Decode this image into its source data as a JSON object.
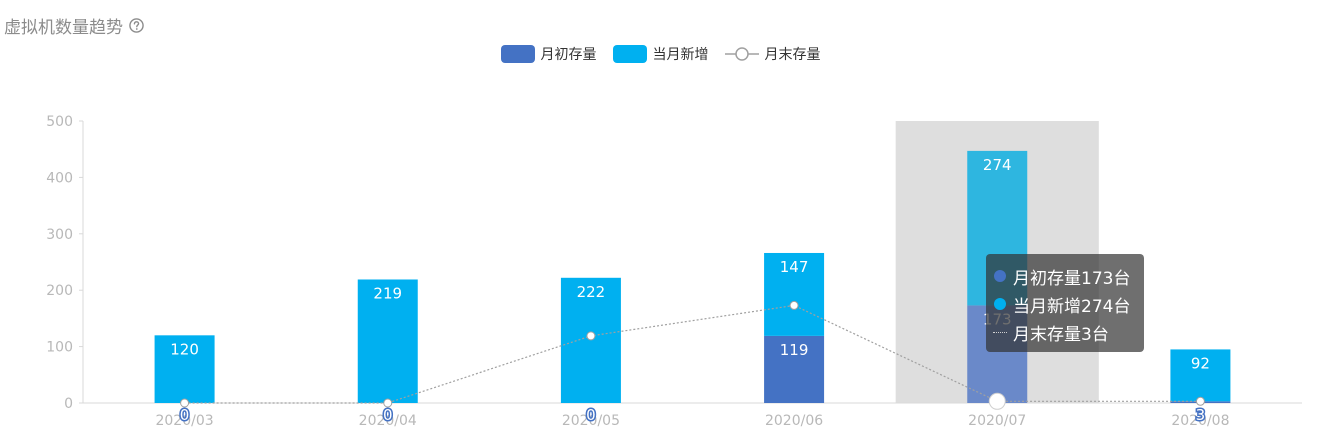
{
  "title": "虚拟机数量趋势",
  "help_icon": "question-circle-icon",
  "colors": {
    "start_stock": "#4472c4",
    "new_added": "#00b0f0",
    "line": "#a0a0a0",
    "axis_label": "#b8b8b8",
    "highlight_band": "#dedede"
  },
  "legend": [
    {
      "name": "月初存量",
      "icon": "rounded-rect"
    },
    {
      "name": "当月新增",
      "icon": "rounded-rect"
    },
    {
      "name": "月末存量",
      "icon": "line-circle"
    }
  ],
  "chart_data": {
    "type": "bar",
    "stacked": true,
    "categories": [
      "2020/03",
      "2020/04",
      "2020/05",
      "2020/06",
      "2020/07",
      "2020/08"
    ],
    "series": [
      {
        "name": "月初存量",
        "type": "bar",
        "values": [
          0,
          0,
          0,
          119,
          173,
          3
        ]
      },
      {
        "name": "当月新增",
        "type": "bar",
        "values": [
          120,
          219,
          222,
          147,
          274,
          92
        ]
      },
      {
        "name": "月末存量",
        "type": "line",
        "values": [
          0,
          0,
          119,
          173,
          3,
          3
        ]
      }
    ],
    "ylim": [
      0,
      500
    ],
    "yticks": [
      0,
      100,
      200,
      300,
      400,
      500
    ],
    "grid": false,
    "legend_position": "top-center",
    "highlighted_category": "2020/07"
  },
  "tooltip": {
    "rows": [
      {
        "text": "月初存量173台",
        "marker": "dot"
      },
      {
        "text": "当月新增274台",
        "marker": "dot"
      },
      {
        "text": "月末存量3台",
        "marker": "line"
      }
    ]
  }
}
